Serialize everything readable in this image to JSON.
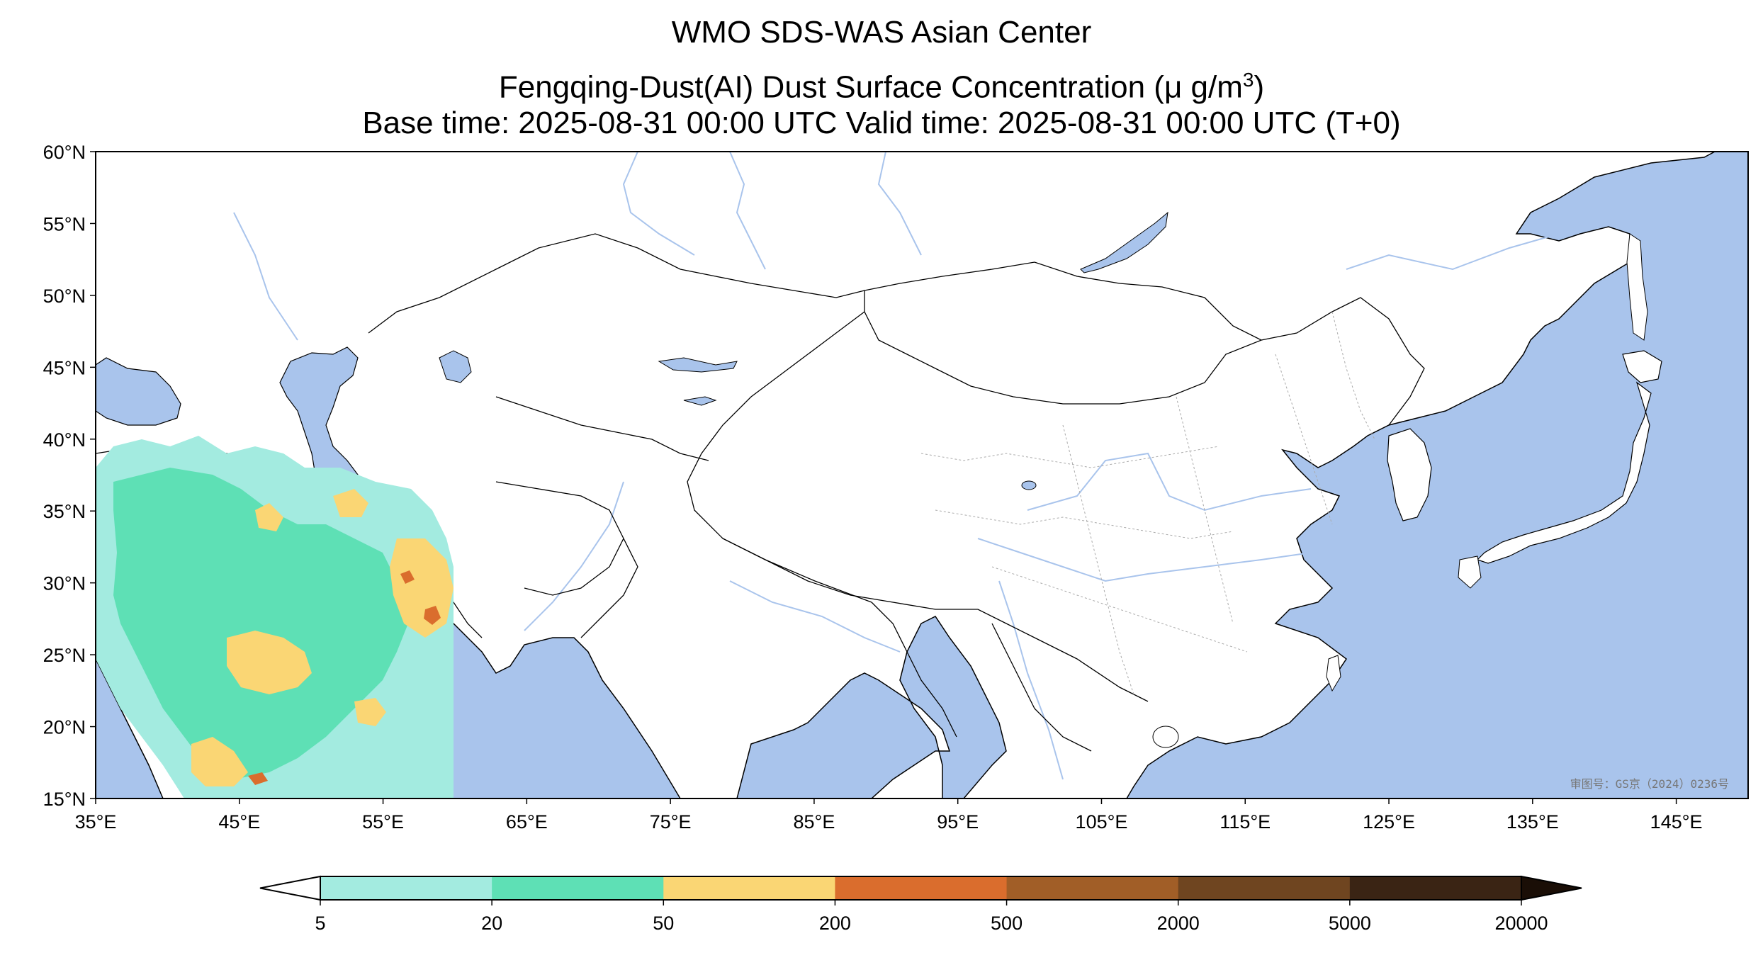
{
  "title": {
    "line1": "WMO SDS-WAS Asian Center",
    "line2_main": "Fengqing-Dust(AI) Dust Surface Concentration (",
    "line2_unit": "μ g/m",
    "line2_sup": "3",
    "line2_close": ")",
    "line3": "Base time: 2025-08-31 00:00 UTC Valid time: 2025-08-31 00:00 UTC (T+0)"
  },
  "map": {
    "lon_ticks": [
      "35°E",
      "45°E",
      "55°E",
      "65°E",
      "75°E",
      "85°E",
      "95°E",
      "105°E",
      "115°E",
      "125°E",
      "135°E",
      "145°E"
    ],
    "lat_ticks": [
      "60°N",
      "55°N",
      "50°N",
      "45°N",
      "40°N",
      "35°N",
      "30°N",
      "25°N",
      "20°N",
      "15°N"
    ],
    "extent": {
      "lon_min": 35,
      "lon_max": 150,
      "lat_min": 15,
      "lat_max": 60
    },
    "ocean_color": "#a9c4ec",
    "land_color": "#ffffff",
    "river_color": "#a9c4ec",
    "watermark": "审图号：GS京（2024）0236号"
  },
  "colorbar": {
    "levels": [
      "5",
      "20",
      "50",
      "200",
      "500",
      "2000",
      "5000",
      "20000"
    ],
    "colors": [
      "#a3ebe0",
      "#5ee0b5",
      "#fad674",
      "#da6d2d",
      "#a15e27",
      "#6f4520",
      "#3a2414",
      "#1a0e06"
    ],
    "under_color": "#ffffff",
    "over_color": "#1a0e06",
    "extend": "both"
  }
}
